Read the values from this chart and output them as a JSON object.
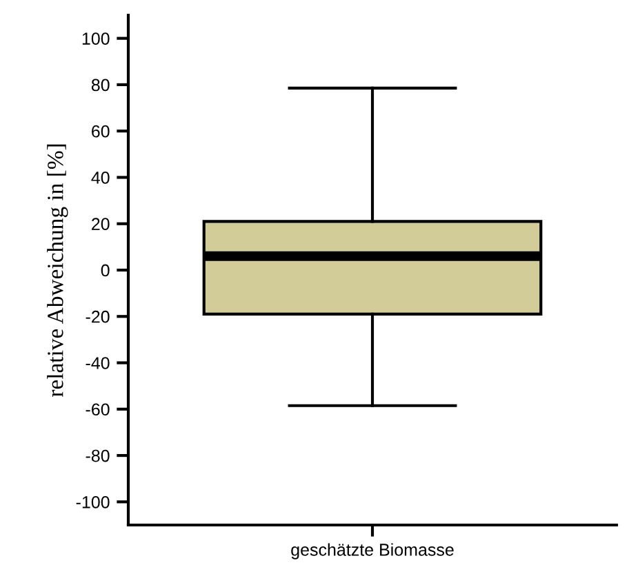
{
  "chart_data": {
    "type": "box",
    "ylabel": "relative Abweichung in [%]",
    "categories": [
      "geschätzte Biomasse"
    ],
    "boxes": [
      {
        "low": -58.5,
        "q1": -19,
        "median": 6,
        "q3": 21,
        "high": 78.5
      }
    ],
    "color": "#d2cc98",
    "ylim": [
      -110,
      110
    ],
    "yticks": [
      -100,
      -80,
      -60,
      -40,
      -20,
      0,
      20,
      40,
      60,
      80,
      100
    ],
    "grid": false,
    "legend": false
  }
}
